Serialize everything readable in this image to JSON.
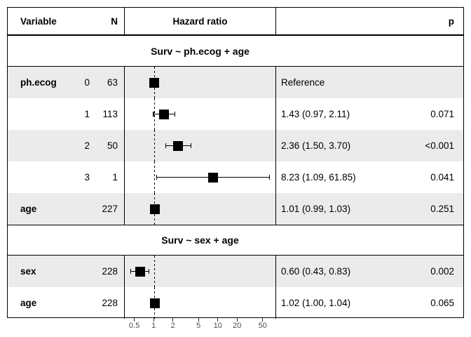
{
  "header": {
    "variable": "Variable",
    "n": "N",
    "hazard_ratio": "Hazard ratio",
    "p": "p"
  },
  "chart_data": {
    "type": "forest",
    "xscale": "log10",
    "xlim": [
      0.35,
      78
    ],
    "x_ticks": [
      0.5,
      1,
      2,
      5,
      10,
      20,
      50
    ],
    "reference_line": 1,
    "sections": [
      {
        "title": "Surv ~ ph.ecog + age",
        "rows": [
          {
            "variable": "ph.ecog",
            "level": "0",
            "n": "63",
            "hr": 1.0,
            "lo": 1.0,
            "hi": 1.0,
            "estimate": "Reference",
            "p": ""
          },
          {
            "variable": "",
            "level": "1",
            "n": "113",
            "hr": 1.43,
            "lo": 0.97,
            "hi": 2.11,
            "estimate": "1.43 (0.97, 2.11)",
            "p": "0.071"
          },
          {
            "variable": "",
            "level": "2",
            "n": "50",
            "hr": 2.36,
            "lo": 1.5,
            "hi": 3.7,
            "estimate": "2.36 (1.50, 3.70)",
            "p": "<0.001"
          },
          {
            "variable": "",
            "level": "3",
            "n": "1",
            "hr": 8.23,
            "lo": 1.09,
            "hi": 61.85,
            "estimate": "8.23 (1.09, 61.85)",
            "p": "0.041"
          },
          {
            "variable": "age",
            "level": "",
            "n": "227",
            "hr": 1.01,
            "lo": 0.99,
            "hi": 1.03,
            "estimate": "1.01 (0.99, 1.03)",
            "p": "0.251"
          }
        ]
      },
      {
        "title": "Surv ~ sex + age",
        "rows": [
          {
            "variable": "sex",
            "level": "",
            "n": "228",
            "hr": 0.6,
            "lo": 0.43,
            "hi": 0.83,
            "estimate": "0.60 (0.43, 0.83)",
            "p": "0.002"
          },
          {
            "variable": "age",
            "level": "",
            "n": "228",
            "hr": 1.02,
            "lo": 1.0,
            "hi": 1.04,
            "estimate": "1.02 (1.00, 1.04)",
            "p": "0.065"
          }
        ]
      }
    ]
  },
  "colors": {
    "row_shade": "#ebebeb",
    "border": "#000000",
    "marker": "#000000",
    "axis_text": "#4d4d4d"
  }
}
